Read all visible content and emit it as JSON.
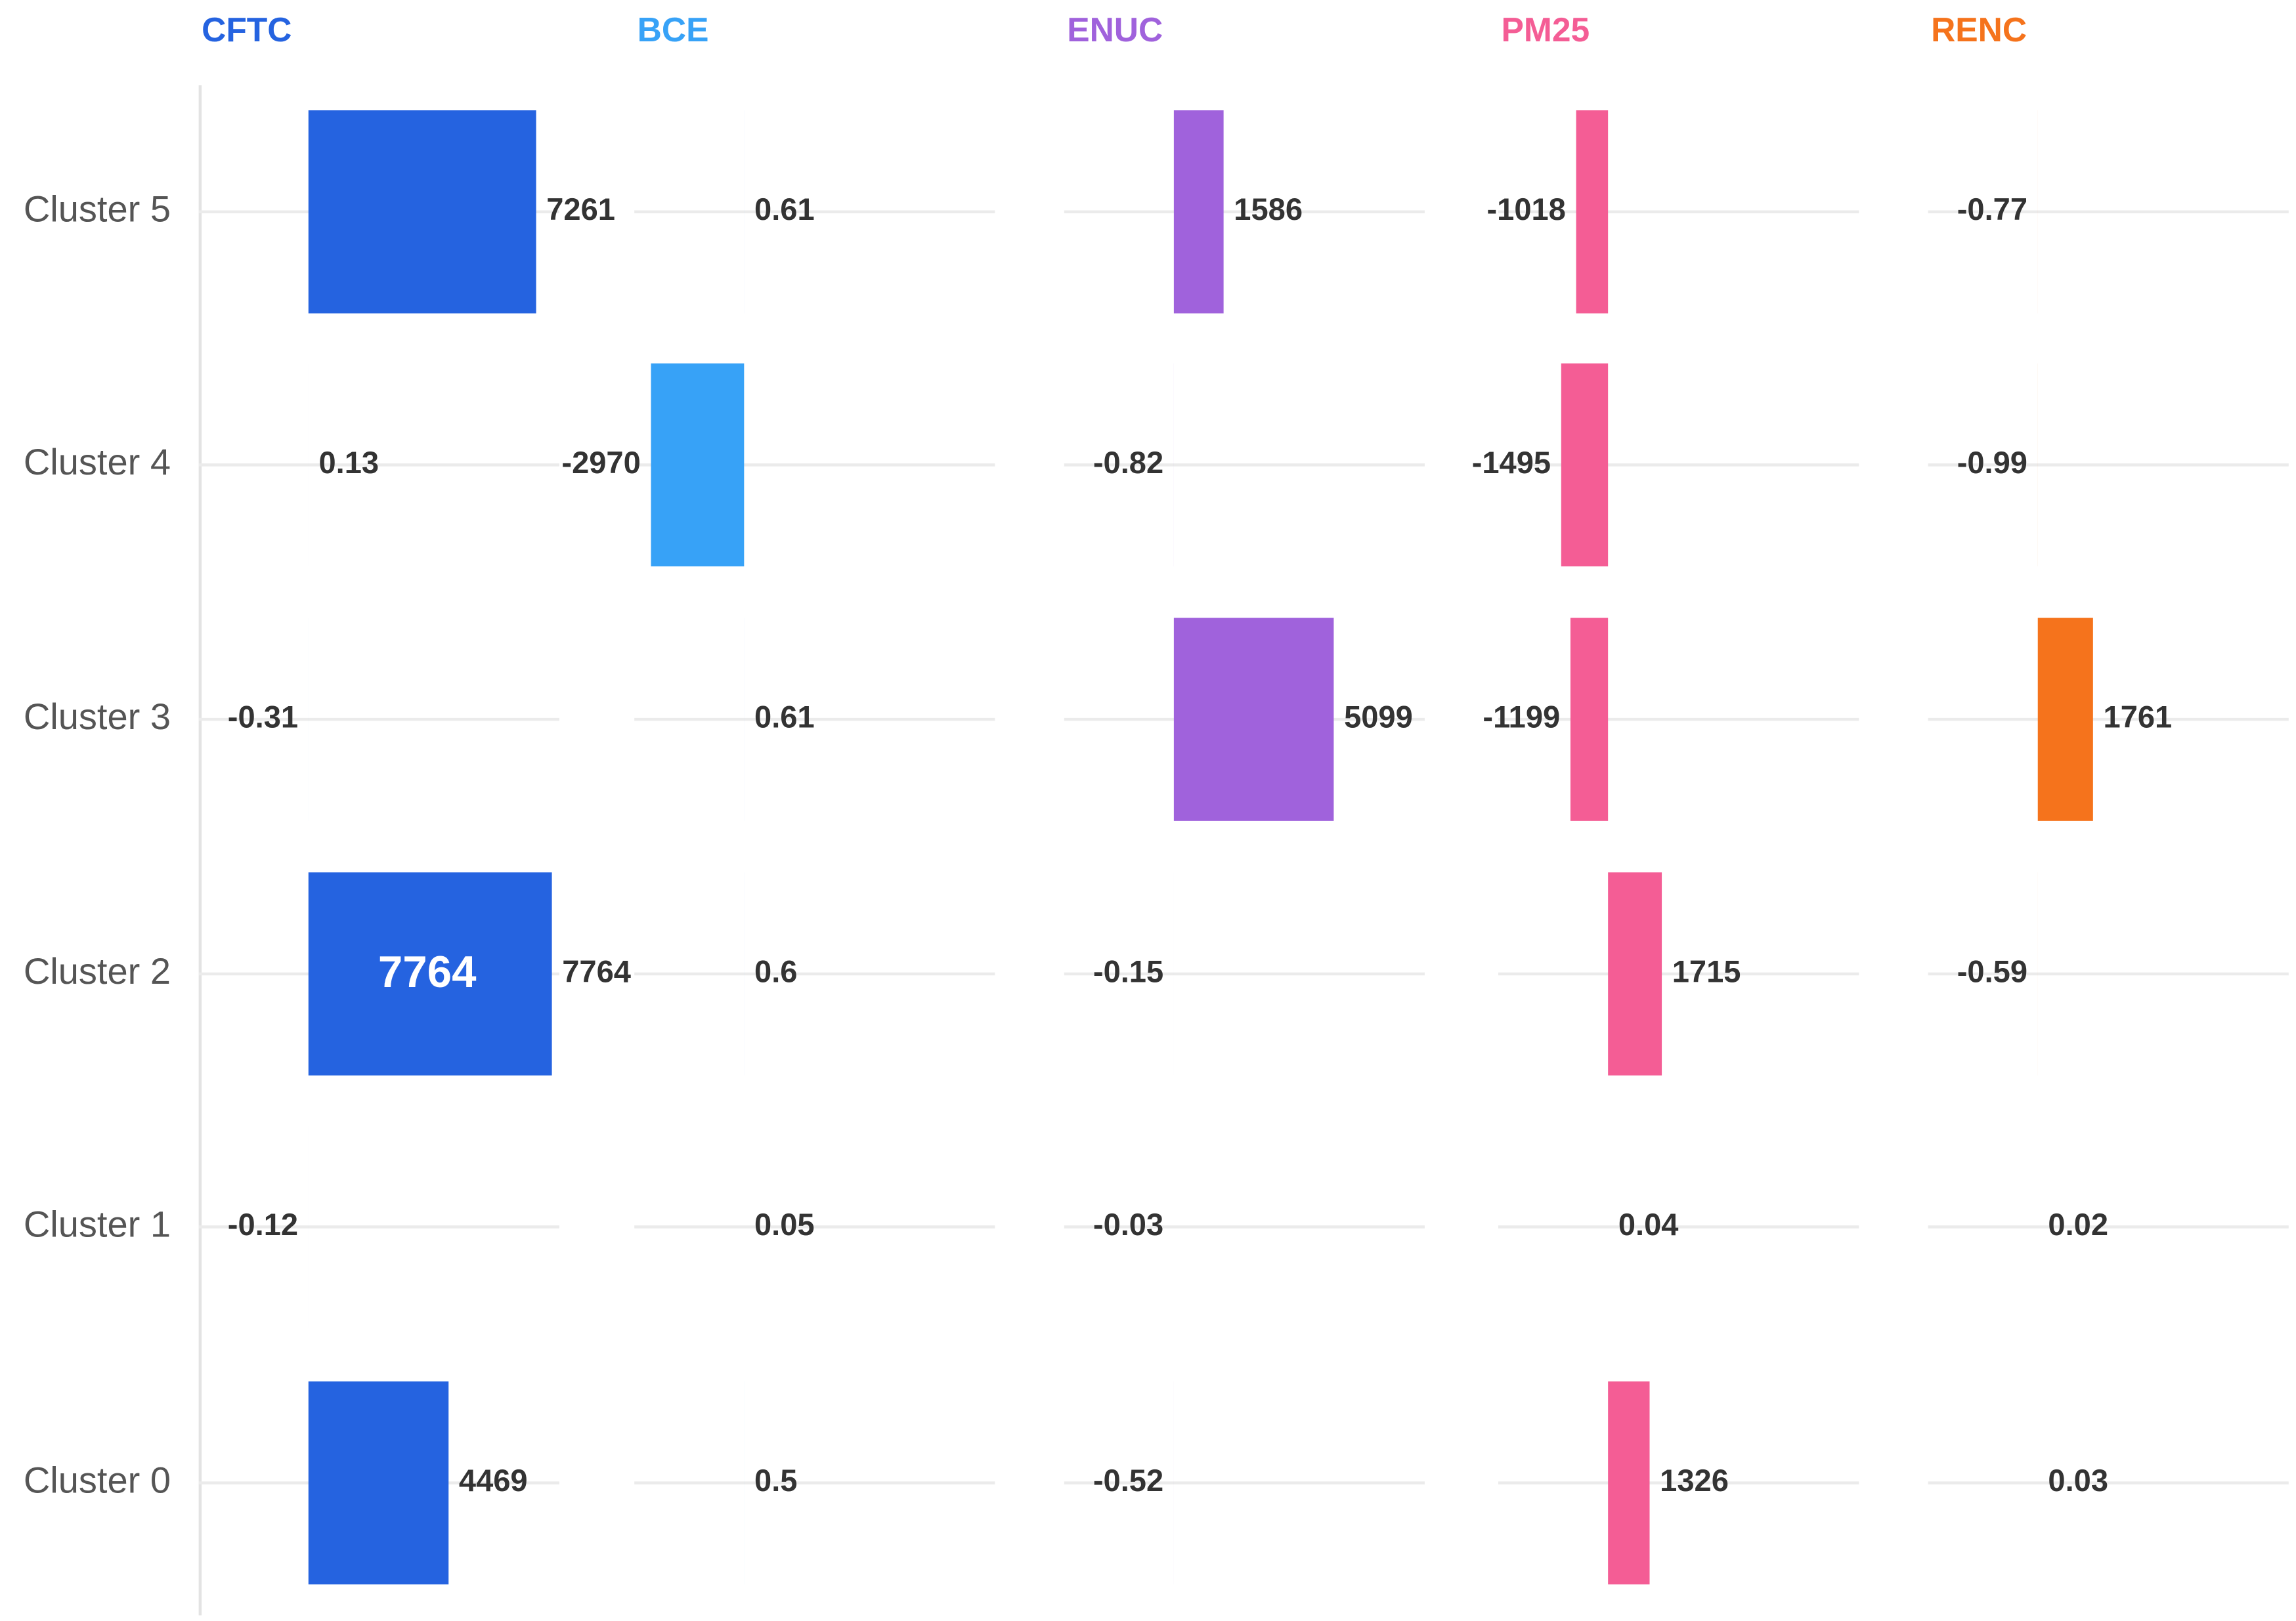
{
  "chart_data": {
    "type": "bar",
    "orientation": "horizontal",
    "layout": "small-multiples",
    "categories": [
      "Cluster 5",
      "Cluster 4",
      "Cluster 3",
      "Cluster 2",
      "Cluster 1",
      "Cluster 0"
    ],
    "panel_xlim": [
      -3500,
      8000
    ],
    "series": [
      {
        "name": "CFTC",
        "color": "#2563e0",
        "values": [
          7261,
          0.13,
          -0.31,
          7764,
          -0.12,
          4469
        ],
        "labels": [
          "7261",
          "0.13",
          "-0.31",
          "7764",
          "-0.12",
          "4469"
        ]
      },
      {
        "name": "BCE",
        "color": "#37a2f7",
        "values": [
          0.61,
          -2970,
          0.61,
          0.6,
          0.05,
          0.5
        ],
        "labels": [
          "0.61",
          "-2970",
          "0.61",
          "0.6",
          "0.05",
          "0.5"
        ]
      },
      {
        "name": "ENUC",
        "color": "#a062dc",
        "values": [
          1586,
          -0.82,
          5099,
          -0.15,
          -0.03,
          -0.52
        ],
        "labels": [
          "1586",
          "-0.82",
          "5099",
          "-0.15",
          "-0.03",
          "-0.52"
        ]
      },
      {
        "name": "PM25",
        "color": "#f45d95",
        "values": [
          -1018,
          -1495,
          -1199,
          1715,
          0.04,
          1326
        ],
        "labels": [
          "-1018",
          "-1495",
          "-1199",
          "1715",
          "0.04",
          "1326"
        ]
      },
      {
        "name": "RENC",
        "color": "#f5731c",
        "values": [
          -0.77,
          -0.99,
          1761,
          -0.59,
          0.02,
          0.03
        ],
        "labels": [
          "-0.77",
          "-0.99",
          "1761",
          "-0.59",
          "0.02",
          "0.03"
        ]
      }
    ],
    "annotations": [
      {
        "series": "CFTC",
        "category": "Cluster 2",
        "text": "7764"
      }
    ]
  }
}
